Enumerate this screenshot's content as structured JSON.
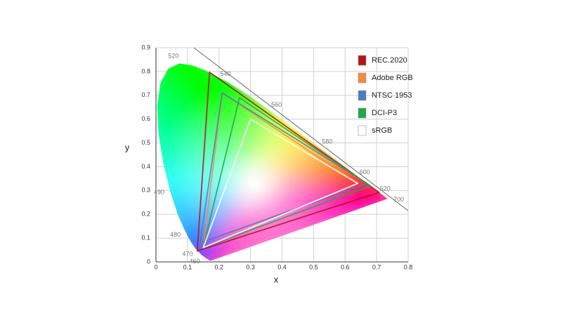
{
  "chart_data": {
    "type": "chromaticity",
    "x_label": "x",
    "y_label": "y",
    "xlim": [
      0,
      0.8
    ],
    "ylim": [
      0,
      0.9
    ],
    "xticks": [
      0,
      0.1,
      0.2,
      0.3,
      0.4,
      0.5,
      0.6,
      0.7,
      0.8
    ],
    "yticks": [
      0,
      0.1,
      0.2,
      0.3,
      0.4,
      0.5,
      0.6,
      0.7,
      0.8,
      0.9
    ],
    "grid": true,
    "legend": "upper right",
    "locus": {
      "labels": [
        null,
        null,
        null,
        null,
        460,
        470,
        null,
        480,
        null,
        490,
        null,
        null,
        null,
        null,
        null,
        520,
        null,
        null,
        540,
        null,
        560,
        null,
        580,
        null,
        600,
        null,
        620,
        null,
        700
      ],
      "x": [
        0.1741,
        0.1714,
        0.1644,
        0.1566,
        0.144,
        0.1241,
        0.1096,
        0.0913,
        0.0687,
        0.0454,
        0.0235,
        0.0082,
        0.0039,
        0.0139,
        0.0389,
        0.0743,
        0.1142,
        0.1547,
        0.2296,
        0.3016,
        0.3731,
        0.4441,
        0.5125,
        0.5752,
        0.627,
        0.6658,
        0.6915,
        0.719,
        0.7347
      ],
      "values": [
        0.005,
        0.0051,
        0.0109,
        0.0177,
        0.0297,
        0.0578,
        0.0868,
        0.1327,
        0.2007,
        0.295,
        0.4127,
        0.5384,
        0.6548,
        0.7502,
        0.812,
        0.8338,
        0.8262,
        0.8059,
        0.7543,
        0.6923,
        0.6245,
        0.5547,
        0.4866,
        0.4242,
        0.3725,
        0.334,
        0.3083,
        0.2809,
        0.2653
      ]
    },
    "series": [
      {
        "name": "REC.2020",
        "color": "#b5121b",
        "x": [
          0.708,
          0.17,
          0.131
        ],
        "values": [
          0.292,
          0.797,
          0.046
        ]
      },
      {
        "name": "Adobe RGB",
        "color": "#f28c3a",
        "x": [
          0.64,
          0.21,
          0.15
        ],
        "values": [
          0.33,
          0.71,
          0.06
        ]
      },
      {
        "name": "NTSC 1953",
        "color": "#4a7ebb",
        "x": [
          0.67,
          0.21,
          0.14
        ],
        "values": [
          0.33,
          0.71,
          0.08
        ]
      },
      {
        "name": "DCI-P3",
        "color": "#22a745",
        "x": [
          0.68,
          0.265,
          0.15
        ],
        "values": [
          0.32,
          0.69,
          0.06
        ]
      },
      {
        "name": "sRGB",
        "color": "#ffffff",
        "x": [
          0.64,
          0.3,
          0.15
        ],
        "values": [
          0.33,
          0.6,
          0.06
        ]
      }
    ]
  }
}
